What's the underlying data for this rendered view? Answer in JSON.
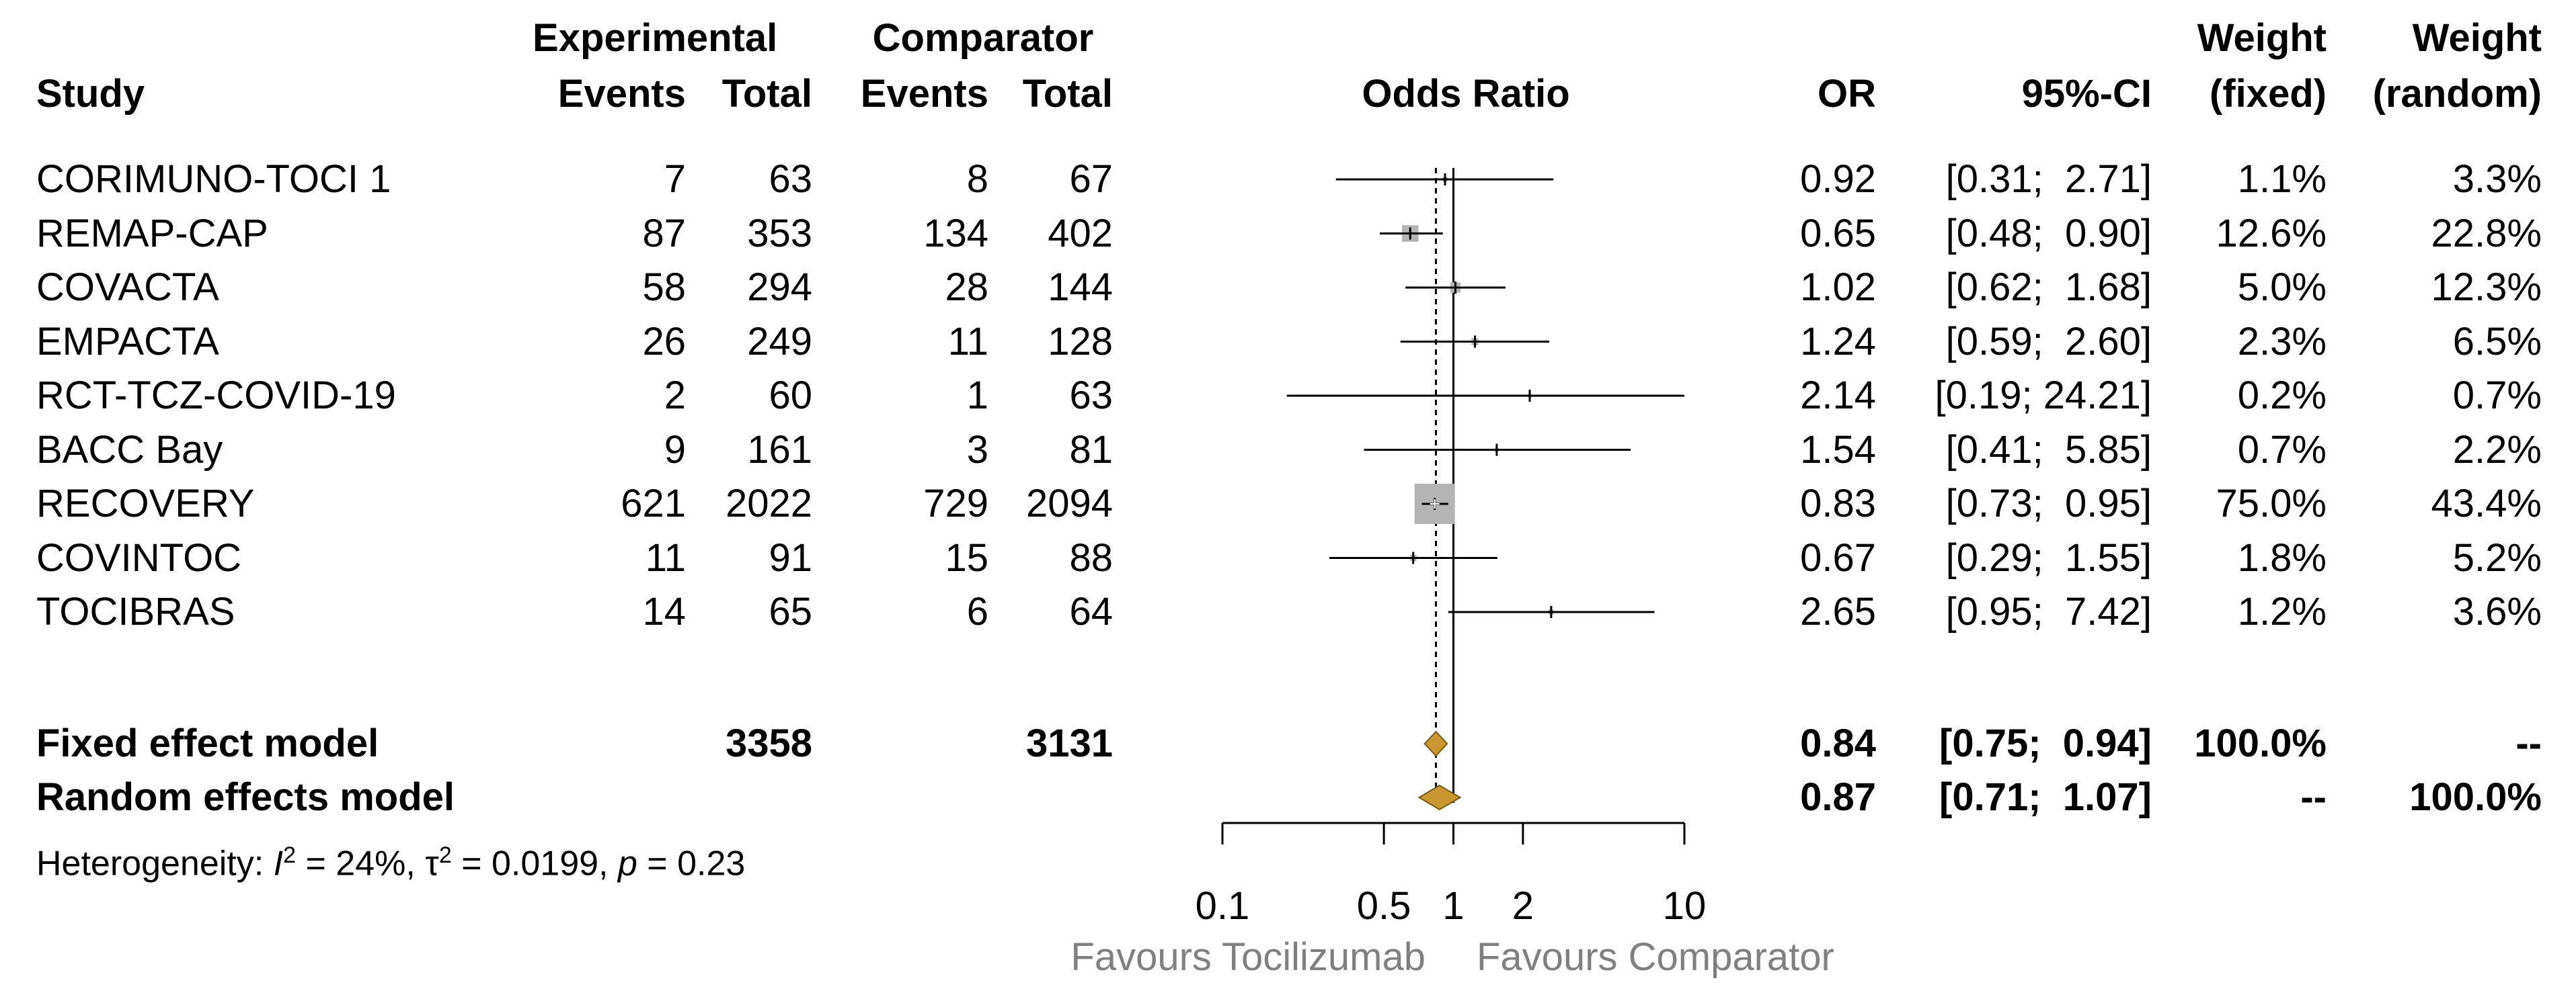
{
  "chart_data": {
    "type": "forest",
    "headers": {
      "study": "Study",
      "experimental": "Experimental",
      "comparator": "Comparator",
      "events": "Events",
      "total": "Total",
      "plot_title": "Odds Ratio",
      "or": "OR",
      "ci": "95%-CI",
      "weight": "Weight",
      "fixed": "(fixed)",
      "random": "(random)"
    },
    "studies": [
      {
        "name": "CORIMUNO-TOCI 1",
        "exp_events": "7",
        "exp_total": "63",
        "comp_events": "8",
        "comp_total": "67",
        "or": 0.92,
        "or_text": "0.92",
        "lower": 0.31,
        "upper": 2.71,
        "ci_text": "[0.31;  2.71]",
        "weight_fixed": "1.1%",
        "weight_random": "3.3%"
      },
      {
        "name": "REMAP-CAP",
        "exp_events": "87",
        "exp_total": "353",
        "comp_events": "134",
        "comp_total": "402",
        "or": 0.65,
        "or_text": "0.65",
        "lower": 0.48,
        "upper": 0.9,
        "ci_text": "[0.48;  0.90]",
        "weight_fixed": "12.6%",
        "weight_random": "22.8%"
      },
      {
        "name": "COVACTA",
        "exp_events": "58",
        "exp_total": "294",
        "comp_events": "28",
        "comp_total": "144",
        "or": 1.02,
        "or_text": "1.02",
        "lower": 0.62,
        "upper": 1.68,
        "ci_text": "[0.62;  1.68]",
        "weight_fixed": "5.0%",
        "weight_random": "12.3%"
      },
      {
        "name": "EMPACTA",
        "exp_events": "26",
        "exp_total": "249",
        "comp_events": "11",
        "comp_total": "128",
        "or": 1.24,
        "or_text": "1.24",
        "lower": 0.59,
        "upper": 2.6,
        "ci_text": "[0.59;  2.60]",
        "weight_fixed": "2.3%",
        "weight_random": "6.5%"
      },
      {
        "name": "RCT-TCZ-COVID-19",
        "exp_events": "2",
        "exp_total": "60",
        "comp_events": "1",
        "comp_total": "63",
        "or": 2.14,
        "or_text": "2.14",
        "lower": 0.19,
        "upper": 24.21,
        "ci_text": "[0.19; 24.21]",
        "weight_fixed": "0.2%",
        "weight_random": "0.7%"
      },
      {
        "name": "BACC Bay",
        "exp_events": "9",
        "exp_total": "161",
        "comp_events": "3",
        "comp_total": "81",
        "or": 1.54,
        "or_text": "1.54",
        "lower": 0.41,
        "upper": 5.85,
        "ci_text": "[0.41;  5.85]",
        "weight_fixed": "0.7%",
        "weight_random": "2.2%"
      },
      {
        "name": "RECOVERY",
        "exp_events": "621",
        "exp_total": "2022",
        "comp_events": "729",
        "comp_total": "2094",
        "or": 0.83,
        "or_text": "0.83",
        "lower": 0.73,
        "upper": 0.95,
        "ci_text": "[0.73;  0.95]",
        "weight_fixed": "75.0%",
        "weight_random": "43.4%"
      },
      {
        "name": "COVINTOC",
        "exp_events": "11",
        "exp_total": "91",
        "comp_events": "15",
        "comp_total": "88",
        "or": 0.67,
        "or_text": "0.67",
        "lower": 0.29,
        "upper": 1.55,
        "ci_text": "[0.29;  1.55]",
        "weight_fixed": "1.8%",
        "weight_random": "5.2%"
      },
      {
        "name": "TOCIBRAS",
        "exp_events": "14",
        "exp_total": "65",
        "comp_events": "6",
        "comp_total": "64",
        "or": 2.65,
        "or_text": "2.65",
        "lower": 0.95,
        "upper": 7.42,
        "ci_text": "[0.95;  7.42]",
        "weight_fixed": "1.2%",
        "weight_random": "3.6%"
      }
    ],
    "fixed": {
      "name": "Fixed effect model",
      "exp_total": "3358",
      "comp_total": "3131",
      "or": 0.84,
      "or_text": "0.84",
      "lower": 0.75,
      "upper": 0.94,
      "ci_text": "[0.75;  0.94]",
      "weight_fixed": "100.0%",
      "weight_random": "--"
    },
    "random": {
      "name": "Random effects model",
      "or": 0.87,
      "or_text": "0.87",
      "lower": 0.71,
      "upper": 1.07,
      "ci_text": "[0.71;  1.07]",
      "weight_fixed": "--",
      "weight_random": "100.0%"
    },
    "heterogeneity": {
      "prefix": "Heterogeneity: ",
      "i_symbol": "I",
      "sup2": "2",
      "i2_value": " = 24%, ",
      "tau_symbol": "τ",
      "tau2_value": " = 0.0199, ",
      "p_symbol": "p",
      "p_value": " = 0.23"
    },
    "x_axis": {
      "scale": "log",
      "range": [
        0.1,
        10
      ],
      "ticks": [
        0.1,
        0.5,
        1,
        2,
        10
      ],
      "tick_labels": [
        "0.1",
        "0.5",
        "1",
        "2",
        "10"
      ],
      "null_value": 1
    },
    "favours_left": "Favours Tocilizumab",
    "favours_right": "Favours Comparator",
    "colors": {
      "square": "#b4b4b4",
      "diamond": "#c8972f",
      "diamond_stroke": "#7a5a12",
      "favours": "#808080"
    }
  }
}
